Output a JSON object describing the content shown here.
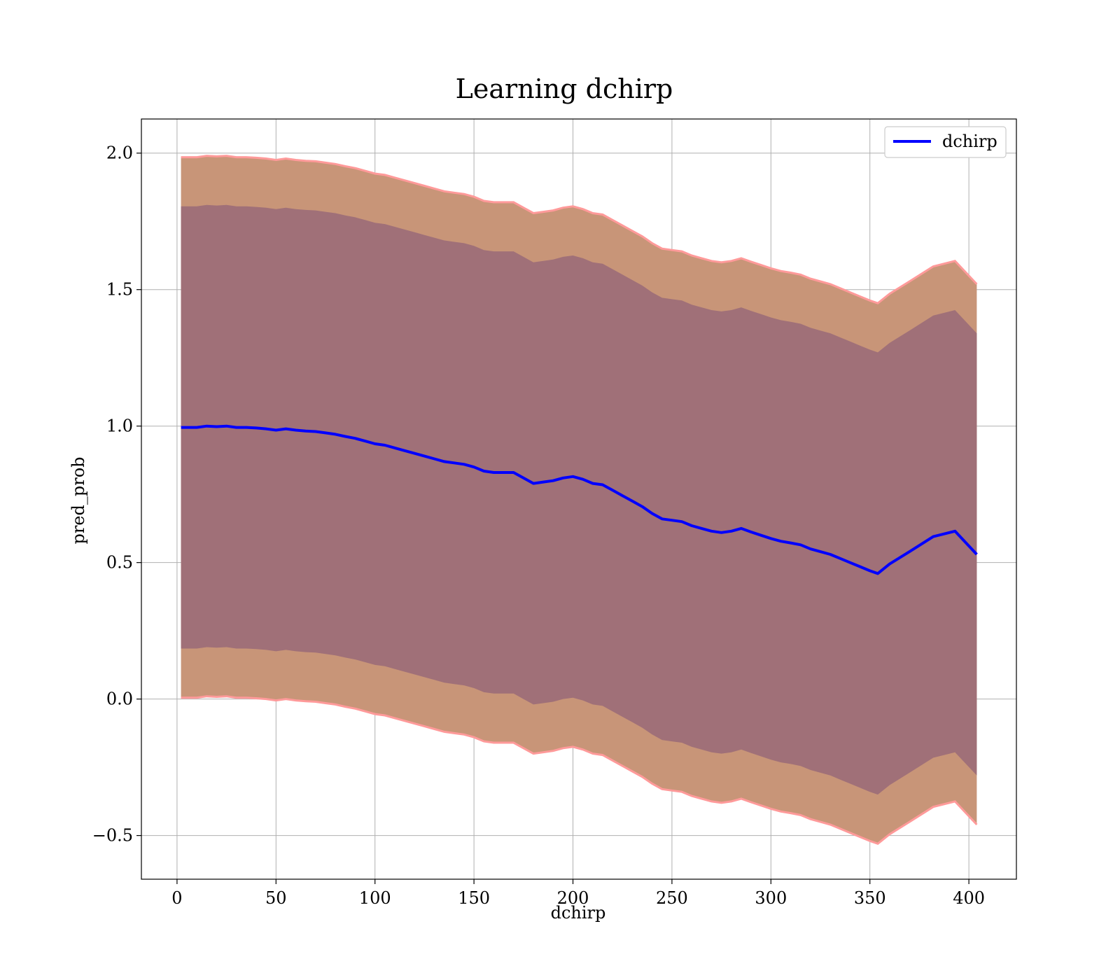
{
  "chart_data": {
    "type": "line",
    "title": "Learning dchirp",
    "xlabel": "dchirp",
    "ylabel": "pred_prob",
    "xlim": [
      -18,
      424
    ],
    "ylim": [
      -0.66,
      2.125
    ],
    "xticks": [
      0,
      50,
      100,
      150,
      200,
      250,
      300,
      350,
      400
    ],
    "xtick_labels": [
      "0",
      "50",
      "100",
      "150",
      "200",
      "250",
      "300",
      "350",
      "400"
    ],
    "yticks": [
      -0.5,
      0.0,
      0.5,
      1.0,
      1.5,
      2.0
    ],
    "ytick_labels": [
      "−0.5",
      "0.0",
      "0.5",
      "1.0",
      "1.5",
      "2.0"
    ],
    "grid": true,
    "legend": {
      "position": "top-right",
      "entries": [
        "dchirp"
      ]
    },
    "colors": {
      "line": "#0000ff",
      "inner_band": "#a07078",
      "outer_band": "#c89578",
      "outer_edge": "#ff9a9a",
      "grid": "#b0b0b0"
    },
    "series": [
      {
        "name": "dchirp",
        "x": [
          2,
          10,
          15,
          20,
          25,
          30,
          35,
          40,
          45,
          50,
          55,
          60,
          65,
          70,
          75,
          80,
          85,
          90,
          95,
          100,
          105,
          110,
          115,
          120,
          125,
          130,
          135,
          140,
          145,
          150,
          155,
          160,
          165,
          170,
          175,
          180,
          185,
          190,
          195,
          200,
          205,
          210,
          215,
          220,
          225,
          230,
          235,
          240,
          245,
          250,
          255,
          260,
          265,
          270,
          275,
          280,
          285,
          290,
          295,
          300,
          305,
          310,
          315,
          320,
          325,
          330,
          335,
          340,
          345,
          350,
          354,
          360,
          370,
          382,
          393,
          404
        ],
        "y": [
          0.995,
          0.995,
          1.0,
          0.998,
          1.0,
          0.995,
          0.995,
          0.993,
          0.99,
          0.985,
          0.99,
          0.985,
          0.982,
          0.98,
          0.975,
          0.97,
          0.962,
          0.955,
          0.945,
          0.935,
          0.93,
          0.92,
          0.91,
          0.9,
          0.89,
          0.88,
          0.87,
          0.865,
          0.86,
          0.85,
          0.835,
          0.83,
          0.83,
          0.83,
          0.81,
          0.79,
          0.795,
          0.8,
          0.81,
          0.815,
          0.805,
          0.79,
          0.785,
          0.765,
          0.745,
          0.725,
          0.705,
          0.68,
          0.66,
          0.655,
          0.65,
          0.635,
          0.625,
          0.615,
          0.61,
          0.615,
          0.625,
          0.612,
          0.6,
          0.588,
          0.578,
          0.572,
          0.565,
          0.55,
          0.54,
          0.53,
          0.515,
          0.5,
          0.485,
          0.47,
          0.46,
          0.495,
          0.54,
          0.595,
          0.615,
          0.53
        ],
        "inner_halfwidth": 0.81,
        "outer_halfwidth": 0.99
      }
    ]
  }
}
